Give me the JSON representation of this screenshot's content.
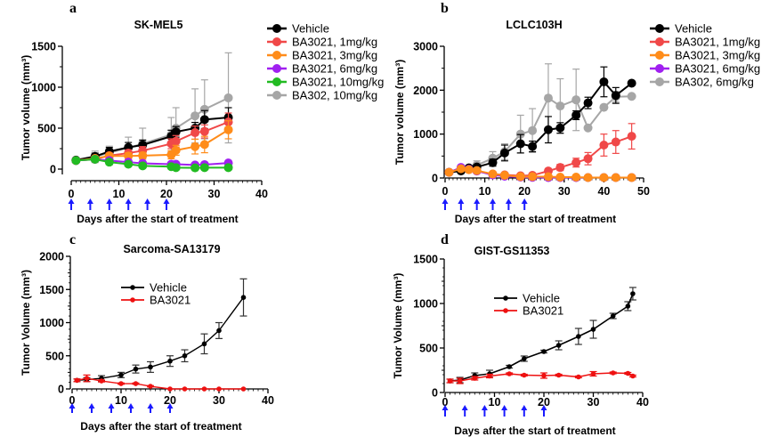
{
  "chart_data": [
    {
      "panel": "a",
      "type": "line",
      "title": "SK-MEL5",
      "xlabel": "Days after the start of treatment",
      "ylabel": "Tumor volume (mm³)",
      "xlim": [
        0,
        40
      ],
      "ylim": [
        0,
        1500
      ],
      "xticks": [
        "0",
        "10",
        "20",
        "30",
        "40"
      ],
      "yticks": [
        "0",
        "500",
        "1000",
        "1500"
      ],
      "legend": "right",
      "dosing_days": [
        0,
        4,
        8,
        12,
        16,
        20
      ],
      "series": [
        {
          "name": "BA302, 10mg/kg",
          "color": "#a6a6a6",
          "x": [
            1,
            5,
            8,
            12,
            15,
            21,
            22,
            26,
            28,
            33
          ],
          "values": [
            110,
            150,
            200,
            260,
            310,
            420,
            500,
            650,
            730,
            870
          ],
          "err": [
            20,
            70,
            80,
            130,
            190,
            210,
            250,
            330,
            360,
            550
          ]
        },
        {
          "name": "Vehicle",
          "color": "#000000",
          "x": [
            1,
            5,
            8,
            12,
            15,
            21,
            22,
            26,
            28,
            33
          ],
          "values": [
            110,
            155,
            215,
            265,
            295,
            400,
            455,
            500,
            605,
            630
          ],
          "err": [
            15,
            40,
            50,
            60,
            60,
            75,
            65,
            70,
            110,
            120
          ]
        },
        {
          "name": "BA3021, 1mg/kg",
          "color": "#f04848",
          "x": [
            1,
            5,
            8,
            12,
            15,
            21,
            22,
            26,
            28,
            33
          ],
          "values": [
            105,
            120,
            165,
            195,
            225,
            310,
            340,
            445,
            460,
            575
          ],
          "err": [
            10,
            20,
            30,
            40,
            50,
            60,
            70,
            80,
            80,
            110
          ]
        },
        {
          "name": "BA3021, 3mg/kg",
          "color": "#ff8c1a",
          "x": [
            1,
            5,
            8,
            12,
            15,
            21,
            22,
            26,
            28,
            33
          ],
          "values": [
            105,
            130,
            160,
            160,
            165,
            175,
            230,
            275,
            300,
            480
          ],
          "err": [
            10,
            20,
            30,
            40,
            40,
            50,
            60,
            90,
            100,
            110
          ]
        },
        {
          "name": "BA3021, 6mg/kg",
          "color": "#a020f0",
          "x": [
            1,
            5,
            8,
            12,
            15,
            21,
            22,
            26,
            28,
            33
          ],
          "values": [
            105,
            120,
            105,
            85,
            70,
            60,
            60,
            50,
            55,
            75
          ],
          "err": [
            10,
            15,
            15,
            15,
            10,
            10,
            10,
            10,
            10,
            15
          ]
        },
        {
          "name": "BA3021, 10mg/kg",
          "color": "#22bb22",
          "x": [
            1,
            5,
            8,
            12,
            15,
            21,
            22,
            26,
            28,
            33
          ],
          "values": [
            105,
            120,
            85,
            60,
            40,
            30,
            18,
            15,
            18,
            18
          ],
          "err": [
            10,
            15,
            30,
            15,
            10,
            8,
            5,
            5,
            5,
            5
          ]
        }
      ],
      "legend_entries": [
        "Vehicle",
        "BA3021, 1mg/kg",
        "BA3021, 3mg/kg",
        "BA3021, 6mg/kg",
        "BA3021, 10mg/kg",
        "BA302, 10mg/kg"
      ],
      "legend_colors": [
        "#000000",
        "#f04848",
        "#ff8c1a",
        "#a020f0",
        "#22bb22",
        "#a6a6a6"
      ]
    },
    {
      "panel": "b",
      "type": "line",
      "title": "LCLC103H",
      "xlabel": "Days after the start of treatment",
      "ylabel": "Tumor volume (mm³)",
      "xlim": [
        0,
        50
      ],
      "ylim": [
        0,
        3000
      ],
      "xticks": [
        "0",
        "10",
        "20",
        "30",
        "40",
        "50"
      ],
      "yticks": [
        "0",
        "1000",
        "2000",
        "3000"
      ],
      "legend": "right",
      "dosing_days": [
        0,
        4,
        8,
        12,
        16,
        20
      ],
      "series": [
        {
          "name": "BA302, 6mg/kg",
          "color": "#a6a6a6",
          "x": [
            1,
            4,
            6,
            8,
            12,
            15,
            19,
            22,
            26,
            29,
            33,
            36,
            40,
            43,
            47
          ],
          "values": [
            130,
            170,
            220,
            290,
            450,
            600,
            1000,
            1080,
            1820,
            1640,
            1780,
            1140,
            1610,
            1850,
            1860
          ],
          "err": [
            20,
            30,
            50,
            100,
            150,
            180,
            430,
            500,
            780,
            620,
            700,
            0,
            0,
            120,
            0
          ]
        },
        {
          "name": "Vehicle",
          "color": "#000000",
          "x": [
            1,
            4,
            6,
            8,
            12,
            15,
            19,
            22,
            26,
            29,
            33,
            36,
            40,
            43,
            47
          ],
          "values": [
            130,
            160,
            230,
            250,
            350,
            570,
            780,
            720,
            1100,
            1140,
            1430,
            1710,
            2190,
            1880,
            2160
          ],
          "err": [
            20,
            30,
            40,
            50,
            80,
            180,
            210,
            120,
            300,
            120,
            100,
            130,
            340,
            180,
            0
          ]
        },
        {
          "name": "BA3021, 1mg/kg",
          "color": "#f04848",
          "x": [
            1,
            4,
            6,
            8,
            12,
            15,
            19,
            22,
            26,
            29,
            33,
            36,
            40,
            43,
            47
          ],
          "values": [
            130,
            220,
            190,
            160,
            90,
            70,
            50,
            60,
            160,
            240,
            350,
            440,
            750,
            820,
            950
          ],
          "err": [
            20,
            30,
            30,
            30,
            20,
            15,
            10,
            20,
            40,
            70,
            100,
            140,
            250,
            260,
            290
          ]
        },
        {
          "name": "BA3021, 6mg/kg",
          "color": "#a020f0",
          "x": [
            1,
            4,
            6,
            8,
            12,
            15,
            19,
            22,
            26,
            29,
            33,
            36,
            40,
            43,
            47
          ],
          "values": [
            130,
            240,
            200,
            160,
            70,
            40,
            20,
            15,
            10,
            10,
            10,
            10,
            10,
            10,
            10
          ],
          "err": [
            20,
            30,
            30,
            30,
            15,
            10,
            5,
            5,
            5,
            5,
            5,
            5,
            5,
            5,
            5
          ]
        },
        {
          "name": "BA3021, 3mg/kg",
          "color": "#ff8c1a",
          "x": [
            1,
            4,
            6,
            8,
            12,
            15,
            19,
            22,
            26,
            29,
            33,
            36,
            40,
            43,
            47
          ],
          "values": [
            130,
            210,
            190,
            170,
            90,
            60,
            30,
            30,
            30,
            20,
            20,
            10,
            10,
            10,
            10
          ],
          "err": [
            20,
            30,
            30,
            30,
            20,
            15,
            10,
            10,
            10,
            5,
            5,
            5,
            5,
            5,
            5
          ]
        }
      ],
      "legend_entries": [
        "Vehicle",
        "BA3021, 1mg/kg",
        "BA3021, 3mg/kg",
        "BA3021, 6mg/kg",
        "BA302, 6mg/kg"
      ],
      "legend_colors": [
        "#000000",
        "#f04848",
        "#ff8c1a",
        "#a020f0",
        "#a6a6a6"
      ]
    },
    {
      "panel": "c",
      "type": "line",
      "title": "Sarcoma-SA13179",
      "xlabel": "Days after the start of treatment",
      "ylabel": "Tumor Volume (mm³)",
      "xlim": [
        0,
        40
      ],
      "ylim": [
        0,
        2000
      ],
      "xticks": [
        "0",
        "10",
        "20",
        "30",
        "40"
      ],
      "yticks": [
        "0",
        "500",
        "1000",
        "1500",
        "2000"
      ],
      "legend": "center-left",
      "dosing_days": [
        0,
        4,
        8,
        12,
        16,
        20
      ],
      "series": [
        {
          "name": "Vehicle",
          "color": "#000000",
          "x": [
            1,
            3,
            6,
            10,
            13,
            16,
            20,
            23,
            27,
            30,
            35
          ],
          "values": [
            130,
            140,
            160,
            210,
            300,
            330,
            420,
            500,
            680,
            880,
            1380
          ],
          "err": [
            20,
            30,
            40,
            40,
            60,
            80,
            80,
            90,
            150,
            120,
            280
          ]
        },
        {
          "name": "BA3021",
          "color": "#ee1111",
          "x": [
            1,
            3,
            6,
            10,
            13,
            16,
            20,
            23,
            27,
            30,
            35
          ],
          "values": [
            130,
            160,
            120,
            80,
            80,
            40,
            0,
            0,
            0,
            0,
            0
          ],
          "err": [
            20,
            50,
            15,
            10,
            10,
            10,
            0,
            0,
            0,
            0,
            0
          ]
        }
      ],
      "legend_entries": [
        "Vehicle",
        "BA3021"
      ],
      "legend_colors": [
        "#000000",
        "#ee1111"
      ]
    },
    {
      "panel": "d",
      "type": "line",
      "title": "GIST-GS11353",
      "xlabel": "Days after the start of treatment",
      "ylabel": "Tumor Volume (mm³)",
      "xlim": [
        0,
        40
      ],
      "ylim": [
        0,
        1500
      ],
      "xticks": [
        "0",
        "10",
        "20",
        "30",
        "40"
      ],
      "yticks": [
        "0",
        "500",
        "1000",
        "1500"
      ],
      "legend": "center-left",
      "dosing_days": [
        0,
        4,
        8,
        12,
        16,
        20
      ],
      "series": [
        {
          "name": "Vehicle",
          "color": "#000000",
          "x": [
            1,
            3,
            6,
            9,
            13,
            16,
            20,
            23,
            27,
            30,
            34,
            37,
            38
          ],
          "values": [
            130,
            140,
            190,
            210,
            290,
            380,
            460,
            530,
            630,
            710,
            860,
            970,
            1110
          ],
          "err": [
            20,
            30,
            30,
            40,
            15,
            30,
            15,
            50,
            90,
            100,
            30,
            50,
            70
          ]
        },
        {
          "name": "BA3021",
          "color": "#ee1111",
          "x": [
            1,
            3,
            6,
            9,
            13,
            16,
            20,
            23,
            27,
            30,
            34,
            37,
            38
          ],
          "values": [
            130,
            130,
            160,
            185,
            210,
            195,
            190,
            195,
            175,
            210,
            220,
            215,
            185
          ],
          "err": [
            20,
            30,
            20,
            20,
            10,
            10,
            30,
            10,
            10,
            25,
            10,
            10,
            10
          ]
        }
      ],
      "legend_entries": [
        "Vehicle",
        "BA3021"
      ],
      "legend_colors": [
        "#000000",
        "#ee1111"
      ]
    }
  ],
  "arrow_color": "#1a1aff"
}
